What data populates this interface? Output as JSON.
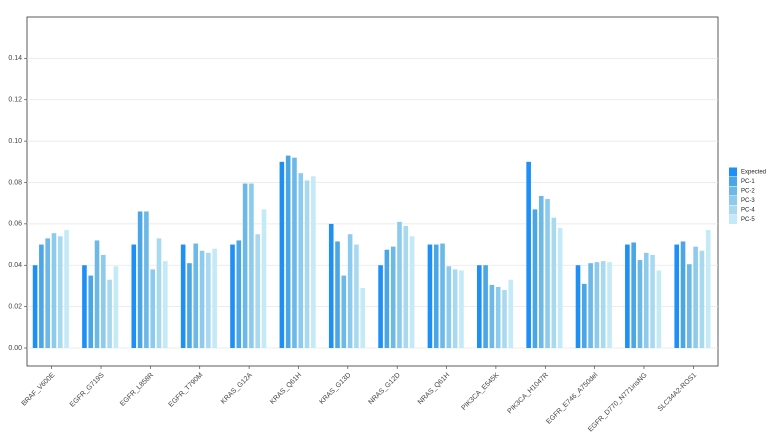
{
  "chart_data": {
    "type": "bar",
    "categories": [
      "BRAF_V600E",
      "EGFR_G719S",
      "EGFR_L858R",
      "EGFR_T790M",
      "KRAS_G12A",
      "KRAS_Q61H",
      "KRAS_G13D",
      "NRAS_G12D",
      "NRAS_Q61H",
      "PIK3CA_E545K",
      "PIK3CA_H1047R",
      "EGFR_E746_A750del",
      "EGFR_D770_N771insNG",
      "SLC34A2-ROS1"
    ],
    "series": [
      {
        "name": "Expected",
        "color": "#1e8ff5",
        "values": [
          0.04,
          0.04,
          0.05,
          0.05,
          0.05,
          0.09,
          0.06,
          0.04,
          0.05,
          0.04,
          0.09,
          0.04,
          0.05,
          0.05
        ]
      },
      {
        "name": "PC-1",
        "color": "#4ba6e6",
        "values": [
          0.05,
          0.035,
          0.066,
          0.041,
          0.052,
          0.093,
          0.0515,
          0.0475,
          0.05,
          0.04,
          0.067,
          0.031,
          0.051,
          0.0515
        ]
      },
      {
        "name": "PC-2",
        "color": "#6cb8e6",
        "values": [
          0.053,
          0.052,
          0.066,
          0.0505,
          0.0795,
          0.092,
          0.035,
          0.049,
          0.0505,
          0.0305,
          0.0735,
          0.041,
          0.0425,
          0.0405
        ]
      },
      {
        "name": "PC-3",
        "color": "#8ccbed",
        "values": [
          0.0555,
          0.045,
          0.038,
          0.047,
          0.0795,
          0.0845,
          0.055,
          0.061,
          0.0395,
          0.0295,
          0.072,
          0.0415,
          0.046,
          0.049
        ]
      },
      {
        "name": "PC-4",
        "color": "#a9d9ef",
        "values": [
          0.054,
          0.033,
          0.053,
          0.046,
          0.055,
          0.081,
          0.05,
          0.059,
          0.038,
          0.028,
          0.063,
          0.042,
          0.045,
          0.047
        ]
      },
      {
        "name": "PC-5",
        "color": "#c4e9f7",
        "values": [
          0.057,
          0.0395,
          0.042,
          0.048,
          0.067,
          0.083,
          0.029,
          0.054,
          0.0375,
          0.033,
          0.058,
          0.0415,
          0.0375,
          0.057
        ]
      }
    ],
    "ylim": [
      -0.0087,
      0.16
    ],
    "yticks": [
      {
        "value": 0,
        "label": "0.00"
      },
      {
        "value": 0.02,
        "label": "0.02"
      },
      {
        "value": 0.04,
        "label": "0.04"
      },
      {
        "value": 0.06,
        "label": "0.06"
      },
      {
        "value": 0.08,
        "label": "0.08"
      },
      {
        "value": 0.1,
        "label": "0.10"
      },
      {
        "value": 0.12,
        "label": "0.12"
      },
      {
        "value": 0.14,
        "label": "0.14"
      }
    ],
    "grid": true,
    "legend": "right"
  }
}
